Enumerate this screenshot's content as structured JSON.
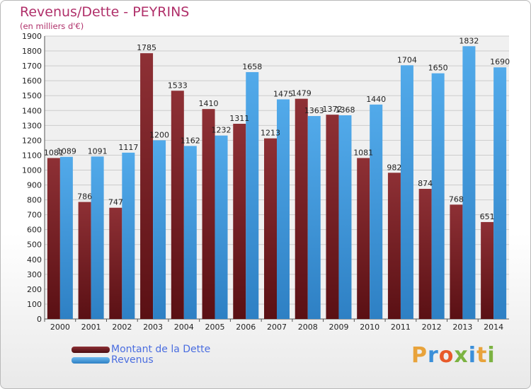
{
  "title": "Revenus/Dette - PEYRINS",
  "subtitle": "(en milliers d'€)",
  "logo": {
    "text": "Proxiti",
    "colors": [
      "#e8a33b",
      "#3b8fd9",
      "#e85a2a",
      "#7cb342",
      "#3b8fd9",
      "#e8a33b",
      "#7cb342"
    ]
  },
  "colors": {
    "dette": "#7a1f24",
    "dette_light": "#8e3035",
    "revenus": "#4aa3e6",
    "revenus_dark": "#2e80c4",
    "grid": "#cccccc",
    "plot_bg": "#f0f0f0"
  },
  "chart_data": {
    "type": "bar",
    "title": "Revenus/Dette - PEYRINS",
    "subtitle": "(en milliers d'€)",
    "categories": [
      "2000",
      "2001",
      "2002",
      "2003",
      "2004",
      "2005",
      "2006",
      "2007",
      "2008",
      "2009",
      "2010",
      "2011",
      "2012",
      "2013",
      "2014"
    ],
    "series": [
      {
        "name": "Montant de la Dette",
        "values": [
          1081,
          786,
          747,
          1785,
          1533,
          1410,
          1311,
          1213,
          1479,
          1372,
          1081,
          982,
          874,
          768,
          651
        ]
      },
      {
        "name": "Revenus",
        "values": [
          1089,
          1091,
          1117,
          1200,
          1162,
          1232,
          1658,
          1475,
          1363,
          1368,
          1440,
          1704,
          1650,
          1832,
          1690
        ]
      }
    ],
    "data_labels": [
      [
        "1081",
        "786",
        "747",
        "1785",
        "1533",
        "1410",
        "1311",
        "1213",
        "1479",
        "1372",
        "1081",
        "982",
        "874",
        "768",
        "651"
      ],
      [
        "1089",
        "1091",
        "1117",
        "1200",
        "1162",
        "1232",
        "1658",
        "1475",
        "1363",
        "1368",
        "1440",
        "1704",
        "1650",
        "1832",
        "1690"
      ]
    ],
    "ylim": [
      0,
      1900
    ],
    "ytick_step": 100,
    "grid": true,
    "legend": "bottom-left"
  }
}
